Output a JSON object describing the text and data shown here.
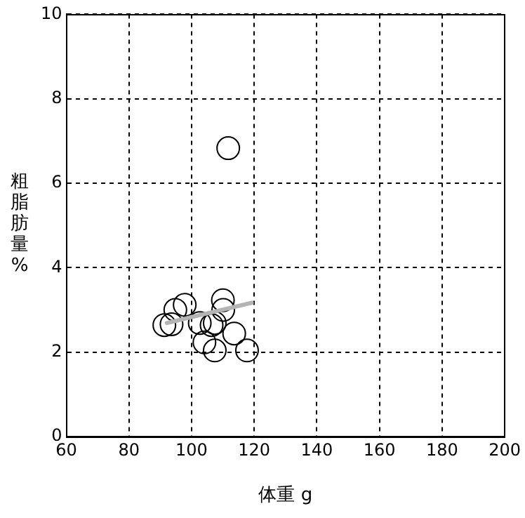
{
  "chart_data": {
    "type": "scatter",
    "xlabel": "体重 g",
    "ylabel": "粗脂肪量%",
    "xlim": [
      60,
      200
    ],
    "xticks": [
      60,
      80,
      100,
      120,
      140,
      160,
      180,
      200
    ],
    "ylim": [
      0,
      10
    ],
    "yticks": [
      0,
      2,
      4,
      6,
      8,
      10
    ],
    "grid": true,
    "marker": "circle",
    "legend": false,
    "series": [
      {
        "color": "#000000",
        "x": [
          111.7,
          91.3,
          93.6,
          94.8,
          97.8,
          102.6,
          106.4,
          107.4,
          104.1,
          107.4,
          113.6,
          117.7,
          110,
          110.1
        ],
        "values": [
          6.83,
          2.64,
          2.66,
          3.0,
          3.12,
          2.69,
          2.64,
          2.69,
          2.23,
          2.04,
          2.44,
          2.04,
          3.23,
          3.0
        ]
      },
      {
        "type": "line",
        "color": "#b4b4b4",
        "marker": "none",
        "x": [
          92.1,
          119.2
        ],
        "values": [
          2.69,
          3.17
        ]
      }
    ]
  }
}
